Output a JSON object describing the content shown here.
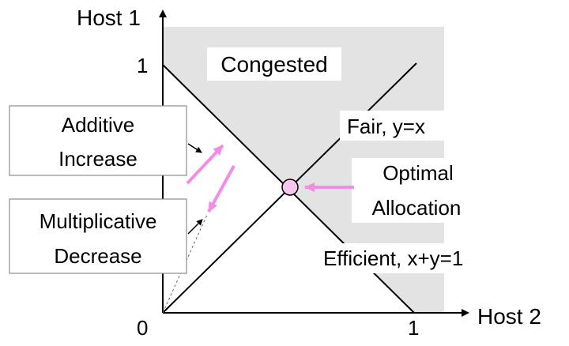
{
  "axes": {
    "y_label": "Host 1",
    "x_label": "Host 2",
    "origin_label": "0",
    "y_tick_label": "1",
    "x_tick_label": "1"
  },
  "regions": {
    "congested_label": "Congested"
  },
  "lines": {
    "fair_label": "Fair, y=x",
    "efficient_label": "Efficient, x+y=1"
  },
  "annotations": {
    "optimal_line1": "Optimal",
    "optimal_line2": "Allocation",
    "additive_line1": "Additive",
    "additive_line2": "Increase",
    "multiplicative_line1": "Multiplicative",
    "multiplicative_line2": "Decrease"
  },
  "colors": {
    "congested_fill": "#e3e3e3",
    "arrow_pink": "#f28ce6",
    "optimal_point_fill": "#f7c6ef",
    "line": "#000000"
  }
}
